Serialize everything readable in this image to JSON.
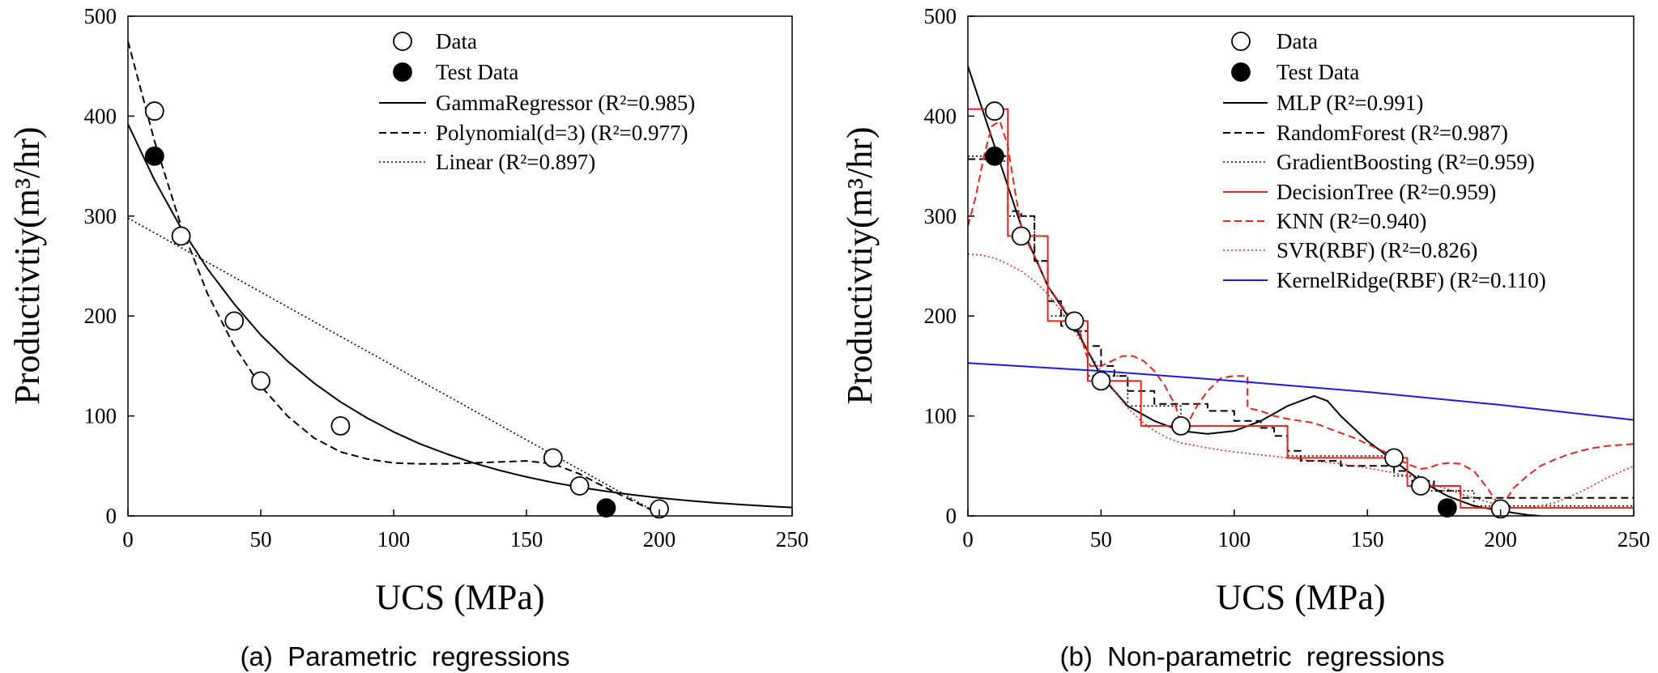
{
  "chart_data": [
    {
      "id": "a",
      "type": "scatter",
      "caption": "(a)  Parametric  regressions",
      "xlabel": "UCS (MPa)",
      "ylabel": "Productivtiy(m³/hr)",
      "xlim": [
        0,
        250
      ],
      "ylim": [
        0,
        500
      ],
      "xticks": [
        0,
        50,
        100,
        150,
        200,
        250
      ],
      "yticks": [
        0,
        100,
        200,
        300,
        400,
        500
      ],
      "xtick_labels": [
        "0",
        "50",
        "100",
        "150",
        "200",
        "250"
      ],
      "ytick_labels": [
        "0",
        "100",
        "200",
        "300",
        "400",
        "500"
      ],
      "data_points": {
        "name": "Data",
        "x": [
          10,
          20,
          40,
          50,
          80,
          160,
          170,
          200
        ],
        "y": [
          405,
          280,
          195,
          135,
          90,
          58,
          30,
          7
        ]
      },
      "test_points": {
        "name": "Test Data",
        "x": [
          10,
          180
        ],
        "y": [
          360,
          8
        ]
      },
      "series": [
        {
          "name": "GammaRegressor (R²=0.985)",
          "style": "solid",
          "color": "#000000",
          "x": [
            0,
            10,
            20,
            30,
            40,
            50,
            60,
            70,
            80,
            90,
            100,
            110,
            120,
            130,
            140,
            150,
            160,
            170,
            180,
            190,
            200,
            210,
            220,
            230,
            240,
            250
          ],
          "values": [
            392,
            336,
            288,
            247,
            212,
            181,
            155,
            133,
            114,
            98,
            84,
            72,
            62,
            53,
            45.5,
            39,
            33.4,
            28.7,
            24.6,
            21.1,
            18.1,
            15.5,
            13.3,
            11.4,
            9.8,
            8.4
          ]
        },
        {
          "name": "Polynomial(d=3) (R²=0.977)",
          "style": "dashed",
          "color": "#000000",
          "x": [
            0,
            10,
            20,
            30,
            40,
            50,
            60,
            70,
            80,
            90,
            100,
            110,
            120,
            130,
            140,
            150,
            160,
            170,
            180,
            190,
            200
          ],
          "values": [
            475,
            375,
            290,
            222,
            170,
            130,
            100,
            78,
            64,
            57,
            53,
            52,
            52,
            53,
            54,
            55,
            52,
            42,
            28,
            15,
            2
          ]
        },
        {
          "name": "Linear (R²=0.897)",
          "style": "dotted",
          "color": "#000000",
          "x": [
            0,
            200
          ],
          "values": [
            298,
            2
          ]
        }
      ]
    },
    {
      "id": "b",
      "type": "scatter",
      "caption": "(b)  Non-parametric  regressions",
      "xlabel": "UCS (MPa)",
      "ylabel": "Productivtiy(m³/hr)",
      "xlim": [
        0,
        250
      ],
      "ylim": [
        0,
        500
      ],
      "xticks": [
        0,
        50,
        100,
        150,
        200,
        250
      ],
      "yticks": [
        0,
        100,
        200,
        300,
        400,
        500
      ],
      "xtick_labels": [
        "0",
        "50",
        "100",
        "150",
        "200",
        "250"
      ],
      "ytick_labels": [
        "0",
        "100",
        "200",
        "300",
        "400",
        "500"
      ],
      "data_points": {
        "name": "Data",
        "x": [
          10,
          20,
          40,
          50,
          80,
          160,
          170,
          200
        ],
        "y": [
          405,
          280,
          195,
          135,
          90,
          58,
          30,
          7
        ]
      },
      "test_points": {
        "name": "Test Data",
        "x": [
          10,
          180
        ],
        "y": [
          360,
          8
        ]
      },
      "series": [
        {
          "name": "MLP (R²=0.991)",
          "style": "solid",
          "color": "#000000",
          "x": [
            0,
            10,
            20,
            30,
            40,
            50,
            60,
            70,
            80,
            90,
            100,
            110,
            120,
            130,
            135,
            140,
            150,
            160,
            170,
            180,
            190,
            200,
            210,
            215
          ],
          "values": [
            450,
            370,
            290,
            230,
            190,
            140,
            110,
            95,
            85,
            82,
            85,
            95,
            110,
            120,
            115,
            100,
            75,
            55,
            35,
            20,
            10,
            5,
            1,
            0
          ]
        },
        {
          "name": "RandomForest (R²=0.987)",
          "style": "dashed",
          "color": "#000000",
          "x": [
            0,
            10,
            10,
            15,
            15,
            20,
            20,
            25,
            25,
            30,
            30,
            35,
            35,
            40,
            40,
            45,
            45,
            50,
            50,
            55,
            55,
            60,
            60,
            70,
            70,
            90,
            90,
            100,
            100,
            110,
            110,
            115,
            115,
            120,
            120,
            125,
            125,
            140,
            140,
            160,
            160,
            165,
            165,
            175,
            175,
            185,
            185,
            250
          ],
          "values": [
            357,
            357,
            360,
            360,
            305,
            305,
            300,
            300,
            255,
            255,
            215,
            215,
            190,
            190,
            185,
            185,
            170,
            170,
            150,
            150,
            140,
            140,
            125,
            125,
            112,
            112,
            105,
            105,
            95,
            95,
            88,
            88,
            80,
            80,
            65,
            65,
            55,
            55,
            50,
            50,
            45,
            45,
            35,
            35,
            25,
            25,
            18,
            18
          ]
        },
        {
          "name": "GradientBoosting (R²=0.959)",
          "style": "dotted",
          "color": "#000000",
          "x": [
            0,
            10,
            10,
            15,
            15,
            25,
            25,
            30,
            30,
            40,
            40,
            45,
            45,
            60,
            60,
            80,
            80,
            120,
            120,
            160,
            160,
            170,
            170,
            190,
            190,
            250
          ],
          "values": [
            360,
            360,
            355,
            355,
            300,
            300,
            255,
            255,
            200,
            200,
            185,
            185,
            140,
            140,
            110,
            110,
            90,
            90,
            60,
            60,
            40,
            40,
            25,
            25,
            10,
            10
          ]
        },
        {
          "name": "DecisionTree (R²=0.959)",
          "style": "solid",
          "color": "#e8231f",
          "x": [
            0,
            15,
            15,
            25,
            25,
            30,
            30,
            45,
            45,
            65,
            65,
            120,
            120,
            165,
            165,
            185,
            185,
            250
          ],
          "values": [
            407,
            407,
            280,
            280,
            280,
            280,
            195,
            195,
            135,
            135,
            90,
            90,
            58,
            58,
            30,
            30,
            8,
            8
          ]
        },
        {
          "name": "KNN (R²=0.940)",
          "style": "dashed",
          "color": "#e8231f",
          "x": [
            0,
            3,
            6,
            9,
            12,
            15,
            18,
            20,
            23,
            26,
            30,
            34,
            38,
            42,
            44,
            46,
            50,
            54,
            58,
            62,
            66,
            70,
            74,
            78,
            80,
            83,
            86,
            90,
            95,
            100,
            105,
            105,
            110,
            115,
            120,
            125,
            130,
            135,
            140,
            145,
            150,
            155,
            160,
            162,
            165,
            170,
            173,
            177,
            181,
            185,
            190,
            195,
            200,
            205,
            210,
            215,
            220,
            225,
            230,
            235,
            240,
            245,
            250
          ],
          "values": [
            290,
            320,
            360,
            390,
            395,
            370,
            320,
            290,
            270,
            255,
            230,
            215,
            200,
            185,
            165,
            150,
            150,
            155,
            160,
            160,
            155,
            145,
            130,
            110,
            90,
            95,
            110,
            125,
            138,
            140,
            140,
            108,
            105,
            100,
            97,
            95,
            93,
            88,
            83,
            78,
            72,
            66,
            60,
            56,
            52,
            47,
            48,
            52,
            53,
            52,
            45,
            28,
            8,
            28,
            40,
            50,
            56,
            61,
            65,
            68,
            70,
            71,
            72
          ]
        },
        {
          "name": "SVR(RBF) (R²=0.826)",
          "style": "dotted",
          "color": "#e8231f",
          "x": [
            0,
            5,
            10,
            15,
            20,
            25,
            30,
            35,
            40,
            45,
            50,
            55,
            60,
            65,
            70,
            75,
            80,
            90,
            100,
            110,
            120,
            130,
            140,
            150,
            160,
            165,
            170,
            175,
            180,
            185,
            190,
            195,
            200,
            205,
            210,
            215,
            220,
            225,
            230,
            235,
            240,
            245,
            250
          ],
          "values": [
            262,
            261,
            258,
            252,
            245,
            235,
            222,
            205,
            185,
            165,
            145,
            125,
            108,
            95,
            85,
            78,
            73,
            68,
            64,
            61,
            58,
            55,
            52,
            48,
            43,
            40,
            36,
            31,
            27,
            22,
            18,
            14,
            10,
            8,
            8,
            10,
            13,
            18,
            24,
            31,
            38,
            44,
            50
          ]
        },
        {
          "name": "KernelRidge(RBF) (R²=0.110)",
          "style": "solid",
          "color": "#1a1ae6",
          "x": [
            0,
            50,
            100,
            150,
            200,
            250
          ],
          "values": [
            153,
            145,
            135,
            124,
            111,
            96
          ]
        }
      ]
    }
  ]
}
